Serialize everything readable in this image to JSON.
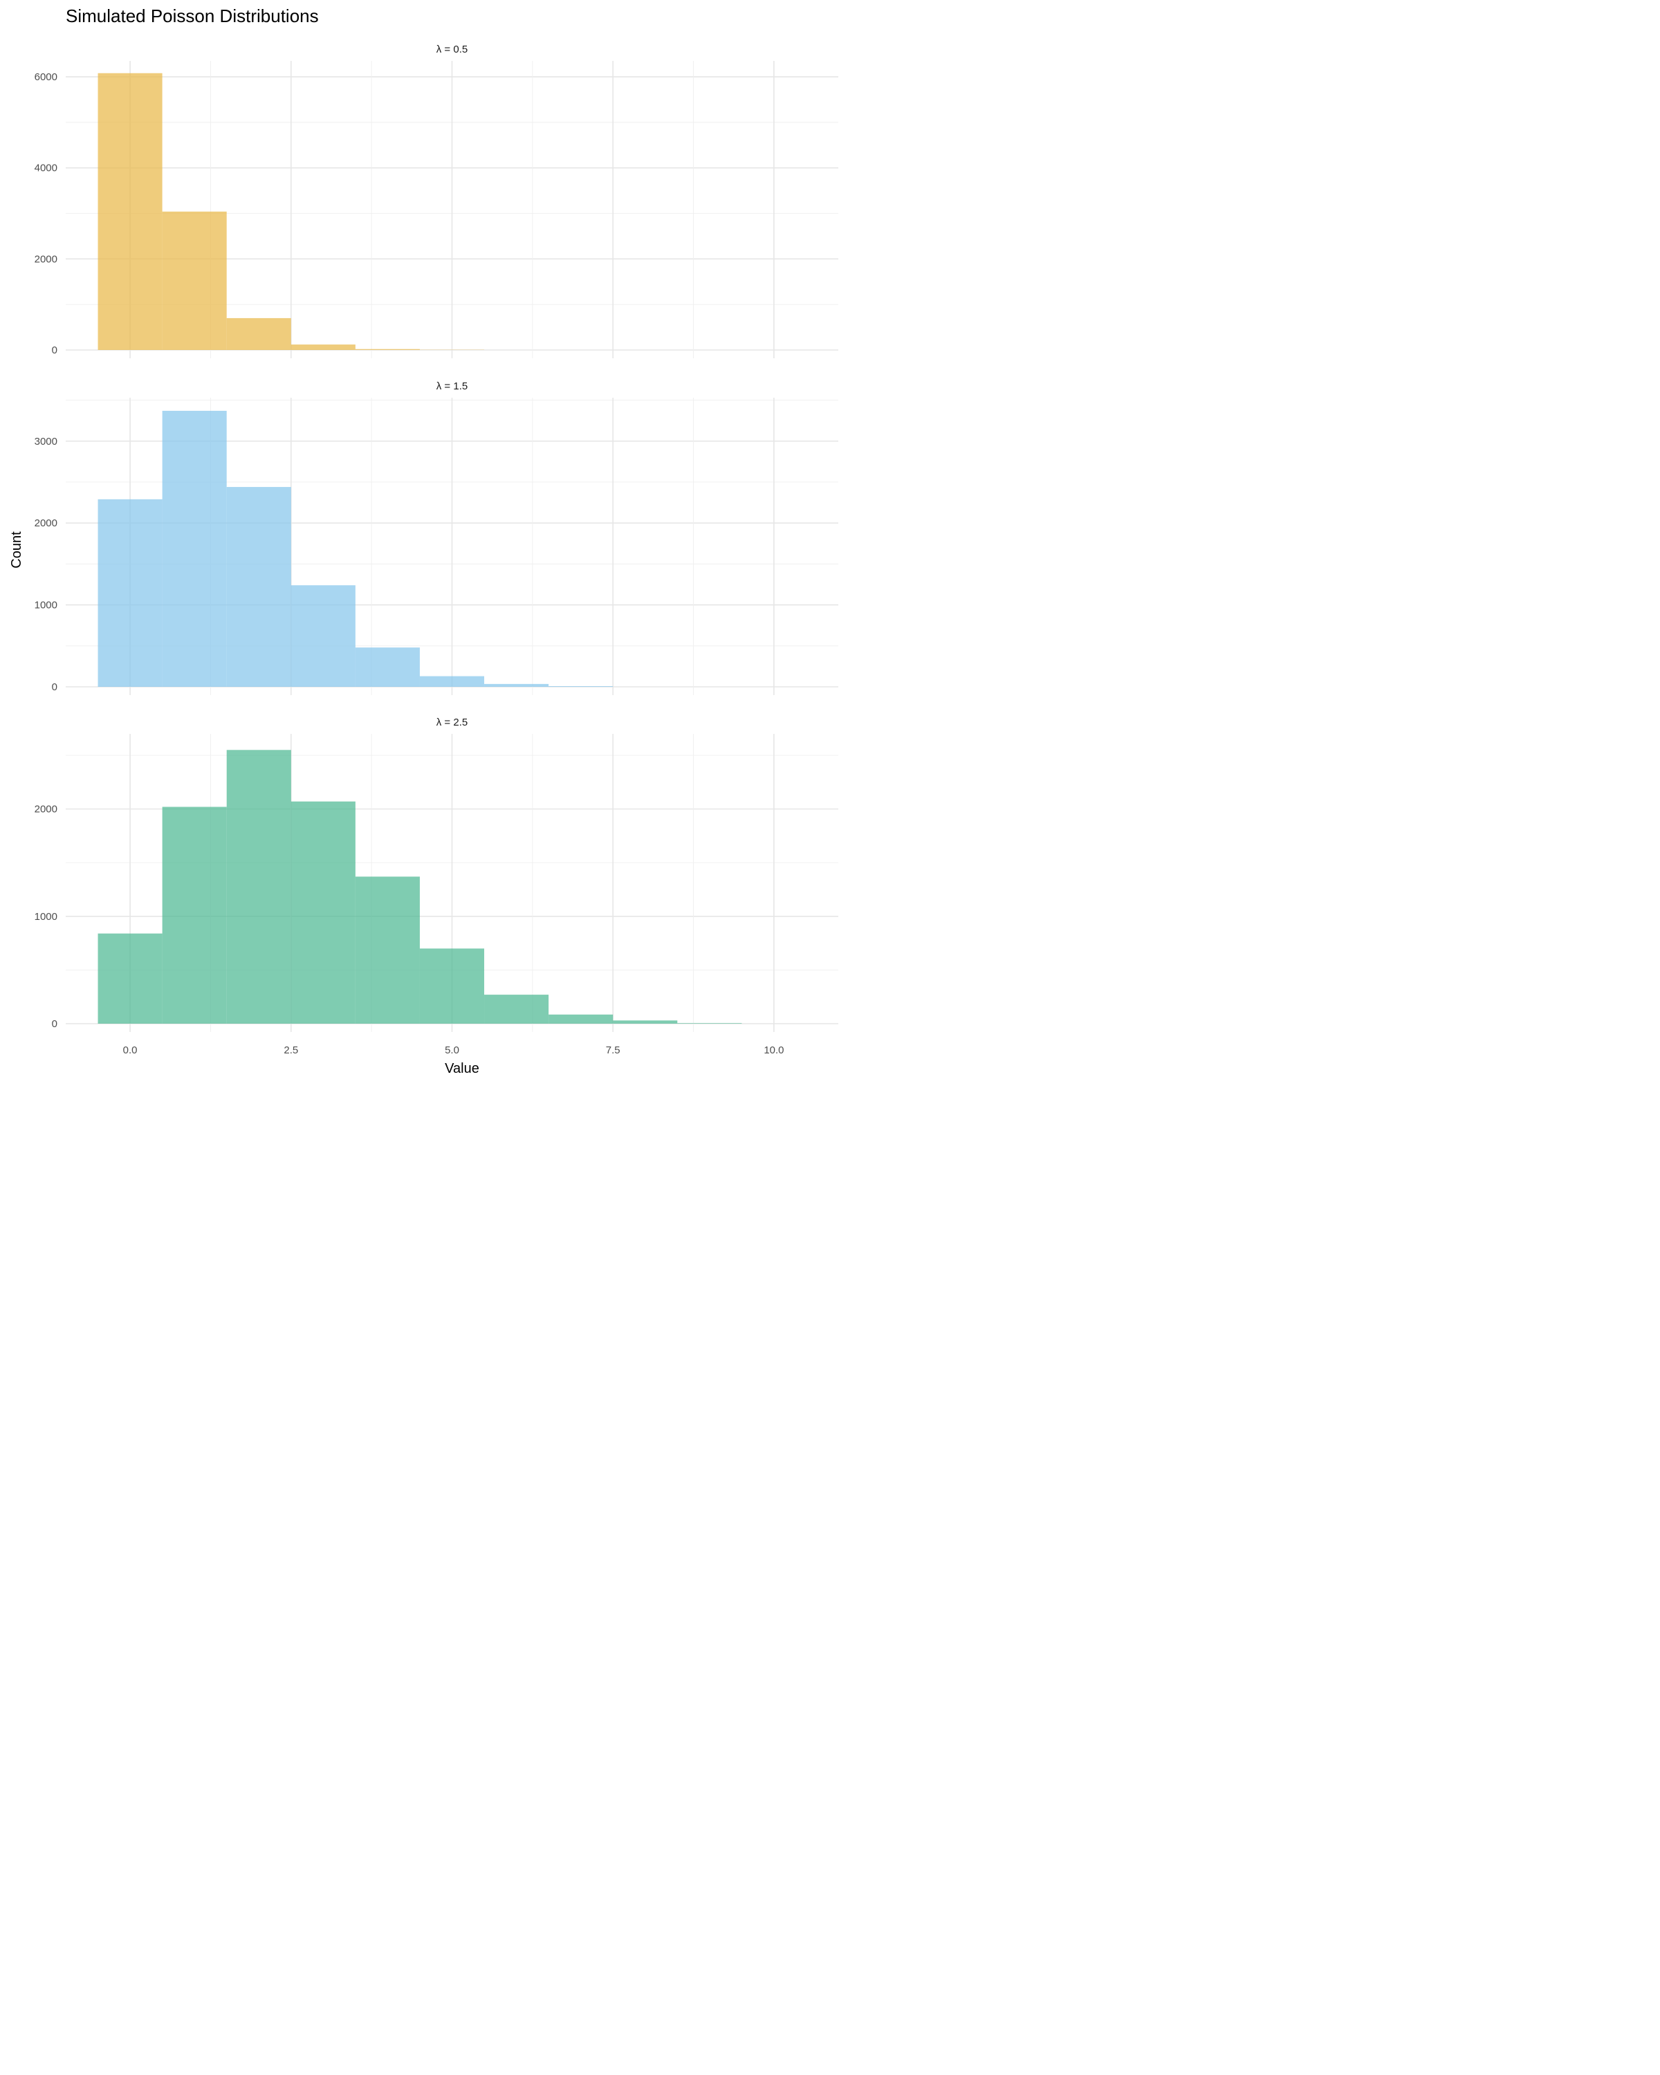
{
  "chart_data": {
    "type": "bar",
    "title": "Simulated Poisson Distributions",
    "xlabel": "Value",
    "ylabel": "Count",
    "xlim": [
      -1,
      11
    ],
    "x_ticks": [
      0.0,
      2.5,
      5.0,
      7.5,
      10.0
    ],
    "x_tick_labels": [
      "0.0",
      "2.5",
      "5.0",
      "7.5",
      "10.0"
    ],
    "bin_width": 1,
    "bin_centers": [
      0,
      1,
      2,
      3,
      4,
      5,
      6,
      7,
      8,
      9,
      10
    ],
    "grid": true,
    "facet_layout": "vertical",
    "panels": [
      {
        "strip_label": "λ = 0.5",
        "color": "#E9B949",
        "ylim": [
          0,
          6350
        ],
        "y_ticks": [
          0,
          2000,
          4000,
          6000
        ],
        "y_tick_labels": [
          "0",
          "2000",
          "4000",
          "6000"
        ],
        "values": [
          6080,
          3040,
          700,
          120,
          20,
          5,
          0,
          0,
          0,
          0,
          0
        ]
      },
      {
        "strip_label": "λ = 1.5",
        "color": "#87C6EC",
        "ylim": [
          0,
          3530
        ],
        "y_ticks": [
          0,
          1000,
          2000,
          3000
        ],
        "y_tick_labels": [
          "0",
          "1000",
          "2000",
          "3000"
        ],
        "values": [
          2290,
          3370,
          2440,
          1240,
          480,
          130,
          35,
          8,
          0,
          0,
          0
        ]
      },
      {
        "strip_label": "λ = 2.5",
        "color": "#4DB893",
        "ylim": [
          0,
          2700
        ],
        "y_ticks": [
          0,
          1000,
          2000
        ],
        "y_tick_labels": [
          "0",
          "1000",
          "2000"
        ],
        "values": [
          840,
          2020,
          2550,
          2070,
          1370,
          700,
          270,
          85,
          30,
          5,
          0
        ]
      }
    ]
  }
}
